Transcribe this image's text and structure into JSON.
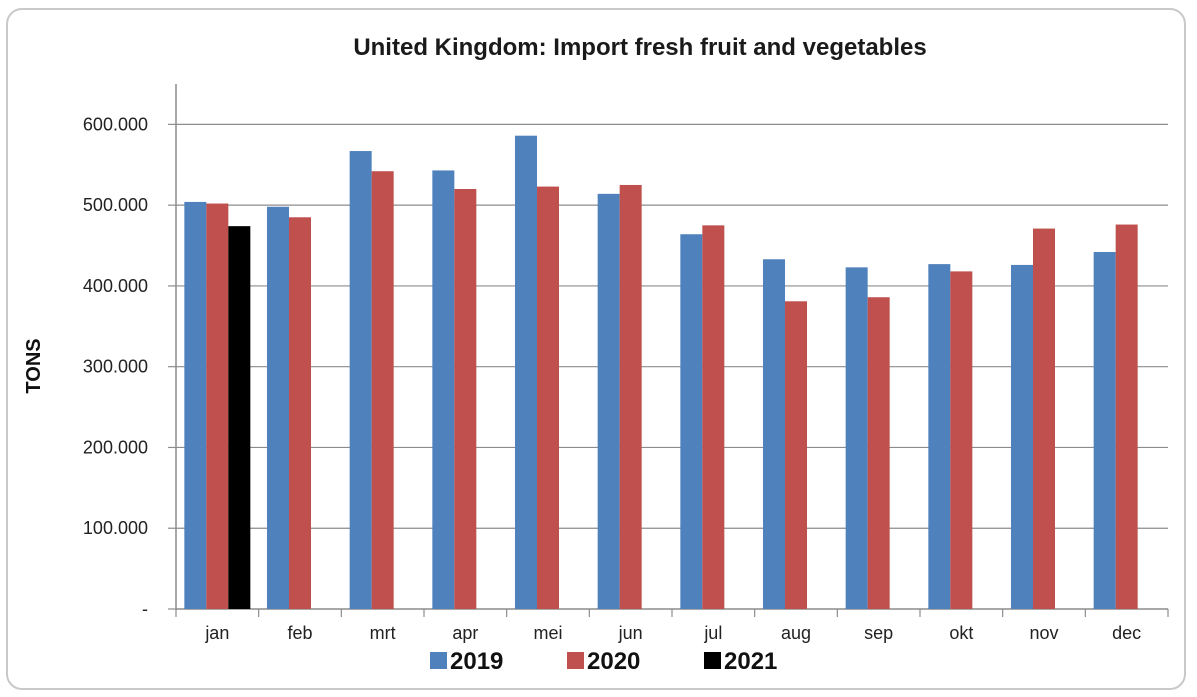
{
  "chart_data": {
    "type": "bar",
    "title": "United Kingdom: Import fresh fruit and vegetables",
    "ylabel": "TONS",
    "xlabel": "",
    "ylim": [
      0,
      650000
    ],
    "yticks": [
      0,
      100000,
      200000,
      300000,
      400000,
      500000,
      600000
    ],
    "ytick_labels": [
      "-",
      "100.000",
      "200.000",
      "300.000",
      "400.000",
      "500.000",
      "600.000"
    ],
    "categories": [
      "jan",
      "feb",
      "mrt",
      "apr",
      "mei",
      "jun",
      "jul",
      "aug",
      "sep",
      "okt",
      "nov",
      "dec"
    ],
    "series": [
      {
        "name": "2019",
        "color": "#4f81bd",
        "values": [
          504000,
          498000,
          567000,
          543000,
          586000,
          514000,
          464000,
          433000,
          423000,
          427000,
          426000,
          442000
        ]
      },
      {
        "name": "2020",
        "color": "#c0504d",
        "values": [
          502000,
          485000,
          542000,
          520000,
          523000,
          525000,
          475000,
          381000,
          386000,
          418000,
          471000,
          476000
        ]
      },
      {
        "name": "2021",
        "color": "#000000",
        "values": [
          474000,
          null,
          null,
          null,
          null,
          null,
          null,
          null,
          null,
          null,
          null,
          null
        ]
      }
    ],
    "grid": true,
    "legend_position": "bottom"
  }
}
